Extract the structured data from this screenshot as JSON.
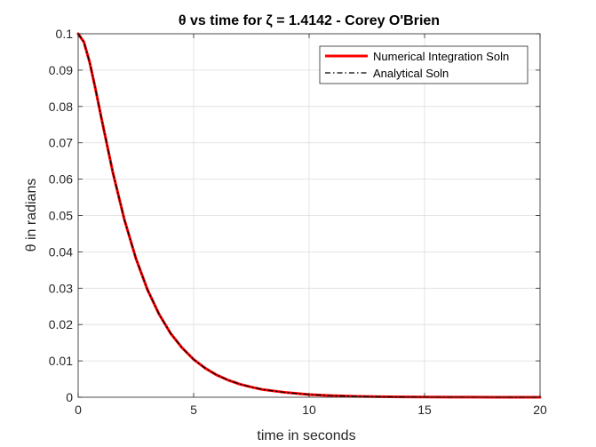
{
  "chart_data": {
    "type": "line",
    "title": "θ vs time for ζ = 1.4142 - Corey O'Brien",
    "xlabel": "time in seconds",
    "ylabel": "θ in radians",
    "xlim": [
      0,
      20
    ],
    "ylim": [
      0,
      0.1
    ],
    "xticks": [
      "0",
      "5",
      "10",
      "15",
      "20"
    ],
    "yticks": [
      "0",
      "0.01",
      "0.02",
      "0.03",
      "0.04",
      "0.05",
      "0.06",
      "0.07",
      "0.08",
      "0.09",
      "0.1"
    ],
    "grid": true,
    "legend_position": "top-right",
    "series": [
      {
        "name": "Numerical Integration Soln",
        "color": "#ff0000",
        "style": "solid",
        "x": [
          0,
          0.25,
          0.5,
          0.75,
          1,
          1.5,
          2,
          2.5,
          3,
          3.5,
          4,
          4.5,
          5,
          5.5,
          6,
          6.5,
          7,
          7.5,
          8,
          9,
          10,
          11,
          12,
          13,
          14,
          15,
          16,
          17,
          18,
          19,
          20
        ],
        "y": [
          0.1,
          0.0977,
          0.0921,
          0.0848,
          0.077,
          0.0619,
          0.0489,
          0.0382,
          0.0296,
          0.0229,
          0.0176,
          0.0136,
          0.0104,
          0.008,
          0.0061,
          0.0047,
          0.0036,
          0.0028,
          0.0021,
          0.0013,
          0.00074,
          0.00044,
          0.00026,
          0.00015,
          9e-05,
          5.2e-05,
          3e-05,
          1.8e-05,
          1e-05,
          6e-06,
          3.6e-06
        ]
      },
      {
        "name": "Analytical Soln",
        "color": "#000000",
        "style": "dash-dot",
        "x": [
          0,
          0.25,
          0.5,
          0.75,
          1,
          1.5,
          2,
          2.5,
          3,
          3.5,
          4,
          4.5,
          5,
          5.5,
          6,
          6.5,
          7,
          7.5,
          8,
          9,
          10,
          11,
          12,
          13,
          14,
          15,
          16,
          17,
          18,
          19,
          20
        ],
        "y": [
          0.1,
          0.0977,
          0.0921,
          0.0848,
          0.077,
          0.0619,
          0.0489,
          0.0382,
          0.0296,
          0.0229,
          0.0176,
          0.0136,
          0.0104,
          0.008,
          0.0061,
          0.0047,
          0.0036,
          0.0028,
          0.0021,
          0.0013,
          0.00074,
          0.00044,
          0.00026,
          0.00015,
          9e-05,
          5.2e-05,
          3e-05,
          1.8e-05,
          1e-05,
          6e-06,
          3.6e-06
        ]
      }
    ]
  }
}
